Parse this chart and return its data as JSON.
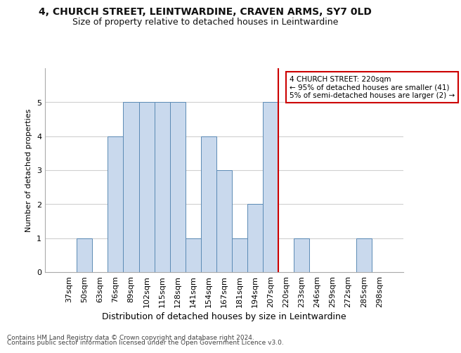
{
  "title_line1": "4, CHURCH STREET, LEINTWARDINE, CRAVEN ARMS, SY7 0LD",
  "title_line2": "Size of property relative to detached houses in Leintwardine",
  "xlabel": "Distribution of detached houses by size in Leintwardine",
  "ylabel": "Number of detached properties",
  "footer_line1": "Contains HM Land Registry data © Crown copyright and database right 2024.",
  "footer_line2": "Contains public sector information licensed under the Open Government Licence v3.0.",
  "bin_labels": [
    "37sqm",
    "50sqm",
    "63sqm",
    "76sqm",
    "89sqm",
    "102sqm",
    "115sqm",
    "128sqm",
    "141sqm",
    "154sqm",
    "167sqm",
    "181sqm",
    "194sqm",
    "207sqm",
    "220sqm",
    "233sqm",
    "246sqm",
    "259sqm",
    "272sqm",
    "285sqm",
    "298sqm"
  ],
  "bar_values": [
    0,
    1,
    0,
    4,
    5,
    5,
    5,
    5,
    1,
    4,
    3,
    1,
    2,
    5,
    0,
    1,
    0,
    0,
    0,
    1,
    0
  ],
  "bar_color": "#c9d9ed",
  "bar_edge_color": "#5b8ab5",
  "property_line_x": 14,
  "annotation_title": "4 CHURCH STREET: 220sqm",
  "annotation_line2": "← 95% of detached houses are smaller (41)",
  "annotation_line3": "5% of semi-detached houses are larger (2) →",
  "annotation_box_color": "#cc0000",
  "ylim": [
    0,
    6
  ],
  "yticks": [
    0,
    1,
    2,
    3,
    4,
    5
  ],
  "background_color": "#ffffff",
  "grid_color": "#d0d0d0",
  "title_fontsize": 10,
  "subtitle_fontsize": 9,
  "ylabel_fontsize": 8,
  "xlabel_fontsize": 9,
  "tick_fontsize": 8,
  "footer_fontsize": 6.5
}
